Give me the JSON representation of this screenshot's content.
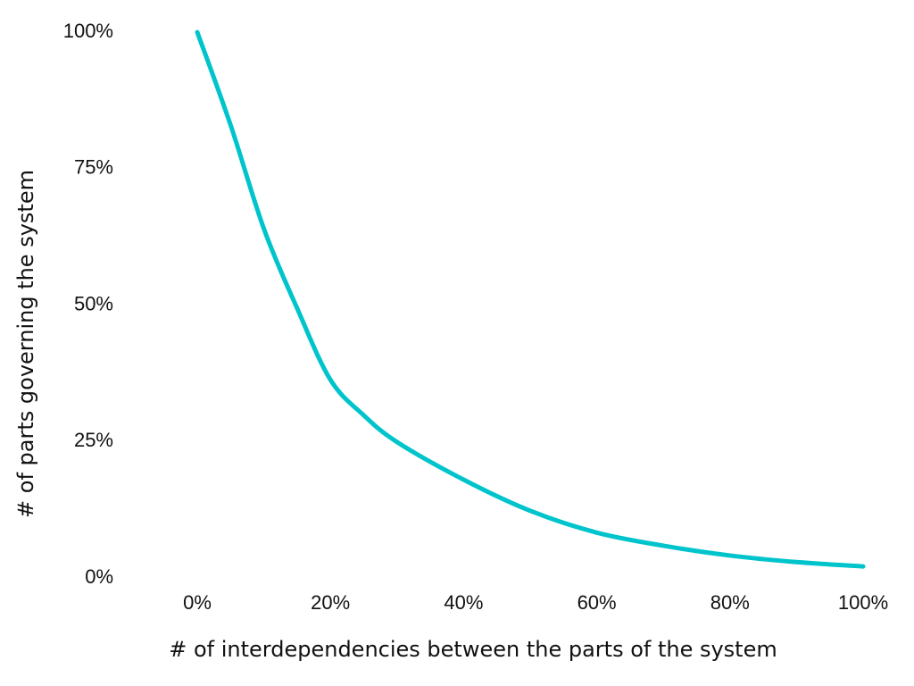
{
  "chart_data": {
    "type": "line",
    "x_label": "# of interdependencies between the parts of the system",
    "y_label": "# of parts governing the system",
    "x": [
      0,
      5,
      10,
      15,
      20,
      25,
      30,
      40,
      50,
      60,
      70,
      80,
      90,
      100
    ],
    "series": [
      {
        "color": "#00c4cc",
        "values": [
          100,
          83,
          64,
          49.4,
          36.3,
          29.8,
          24.9,
          18,
          12.3,
          8.3,
          5.9,
          4.1,
          2.9,
          2.1
        ]
      }
    ],
    "xlim": [
      0,
      100
    ],
    "ylim": [
      0,
      100
    ],
    "xticks": [
      {
        "value": 0,
        "label": "0%"
      },
      {
        "value": 20,
        "label": "20%"
      },
      {
        "value": 40,
        "label": "40%"
      },
      {
        "value": 60,
        "label": "60%"
      },
      {
        "value": 80,
        "label": "80%"
      },
      {
        "value": 100,
        "label": "100%"
      }
    ],
    "yticks": [
      {
        "value": 0,
        "label": "0%"
      },
      {
        "value": 25,
        "label": "25%"
      },
      {
        "value": 50,
        "label": "50%"
      },
      {
        "value": 75,
        "label": "75%"
      },
      {
        "value": 100,
        "label": "100%"
      }
    ],
    "grid": false
  }
}
